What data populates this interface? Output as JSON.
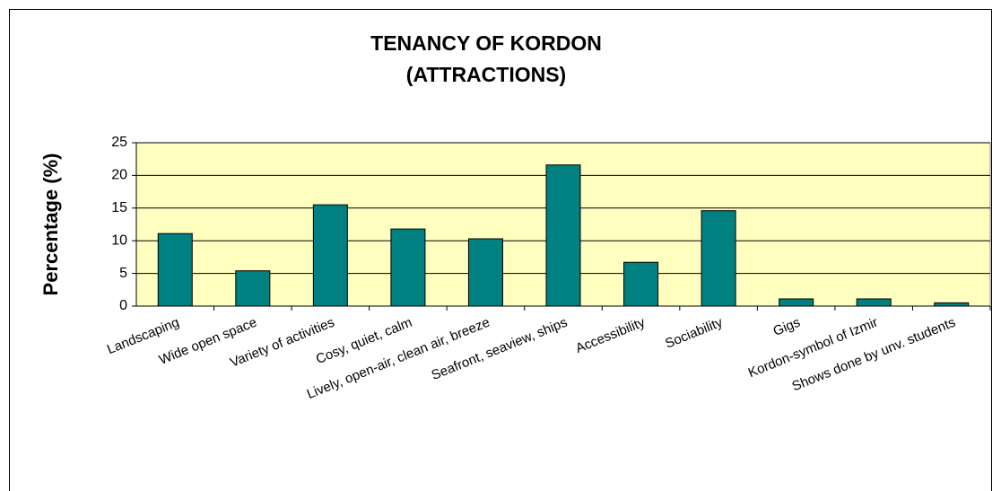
{
  "chart_data": {
    "type": "bar",
    "title": [
      "TENANCY OF KORDON",
      "(ATTRACTIONS)"
    ],
    "y_label": "Percentage (%)",
    "categories": [
      "Landscaping",
      "Wide open space",
      "Variety of activities",
      "Cosy, quiet, calm",
      "Lively, open-air, clean air, breeze",
      "Seafront, seaview, ships",
      "Accessibility",
      "Sociability",
      "Gigs",
      "Kordon-symbol of Izmir",
      "Shows done by unv. students"
    ],
    "values": [
      11.1,
      5.4,
      15.5,
      11.8,
      10.3,
      21.6,
      6.7,
      14.6,
      1.1,
      1.1,
      0.5
    ],
    "color": "#008080",
    "ylim": [
      0,
      25
    ],
    "yticks": [
      0,
      5,
      10,
      15,
      20,
      25
    ],
    "grid": true
  }
}
